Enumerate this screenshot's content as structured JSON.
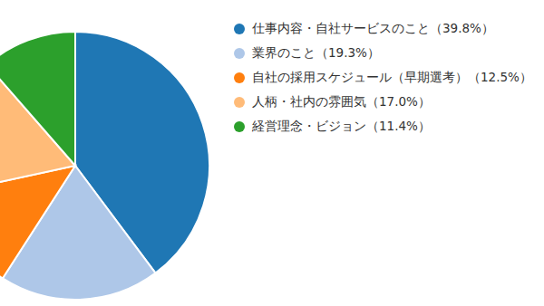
{
  "chart_data": {
    "type": "pie",
    "categories": [
      "仕事内容・自社サービスのこと（39.8%）",
      "業界のこと（19.3%）",
      "自社の採用スケジュール（早期選考）（12.5%）",
      "人柄・社内の雰囲気（17.0%）",
      "経営理念・ビジョン（11.4%）"
    ],
    "values": [
      39.8,
      19.3,
      12.5,
      17.0,
      11.4
    ],
    "colors": [
      "#1f77b4",
      "#aec7e8",
      "#ff7f0e",
      "#ffbb78",
      "#2ca02c"
    ],
    "legend": "right"
  }
}
